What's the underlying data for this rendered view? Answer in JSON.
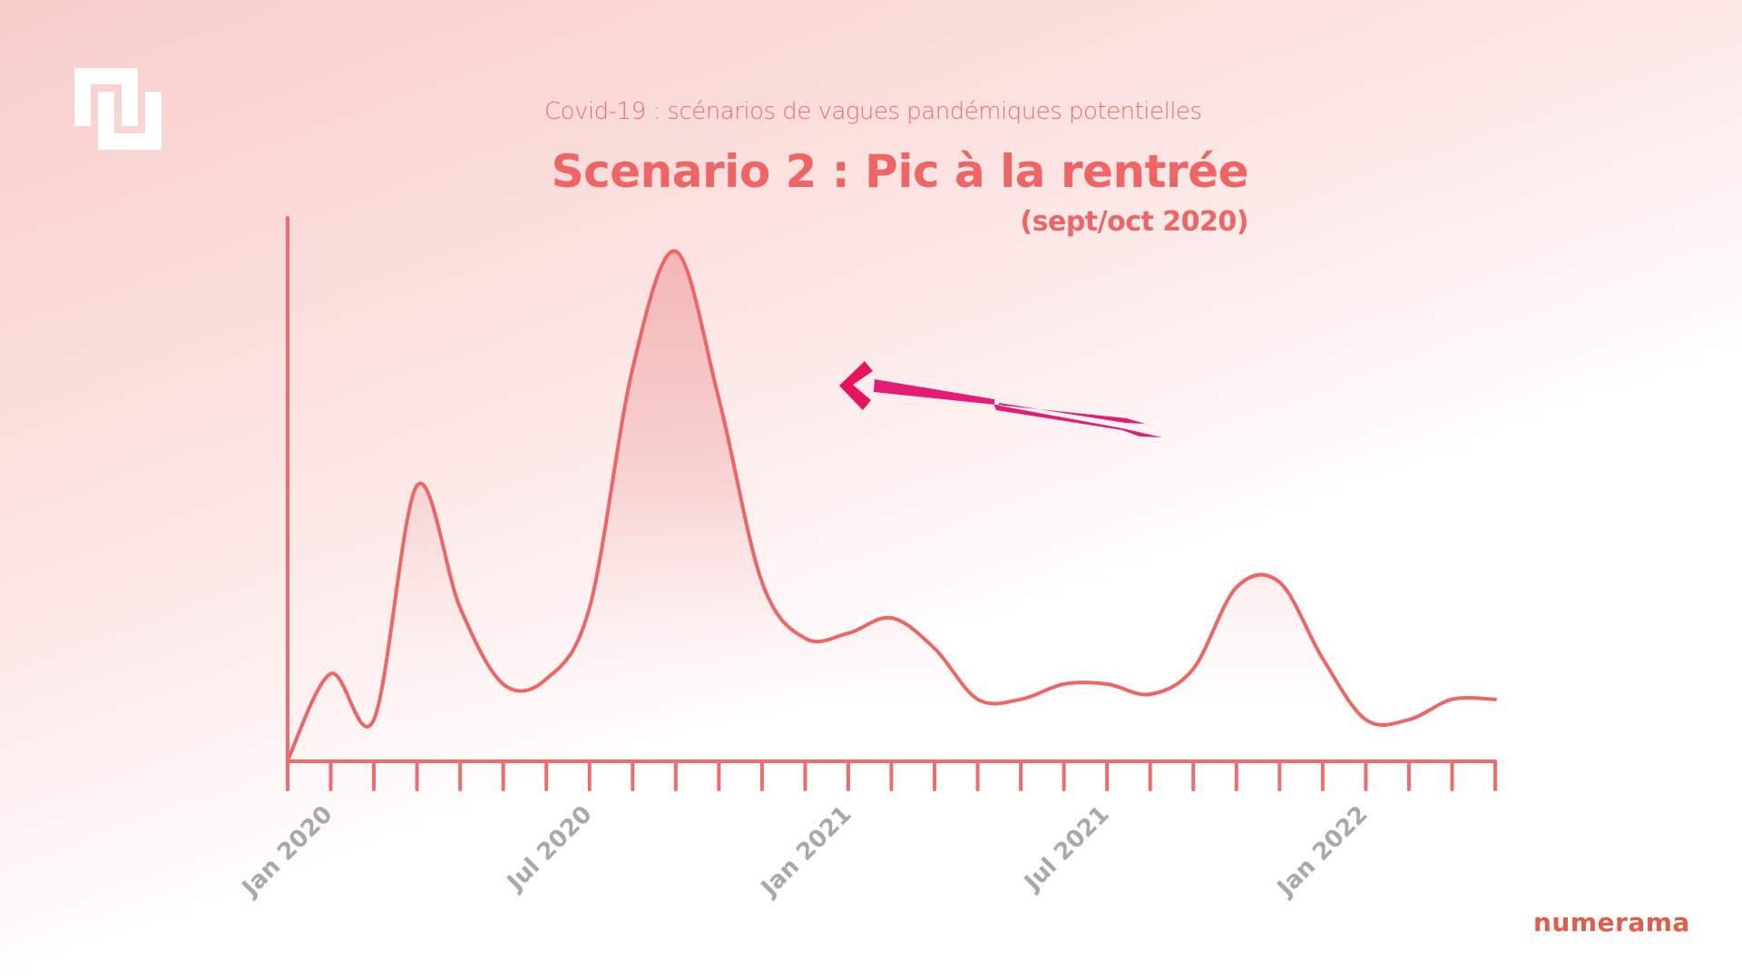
{
  "header": {
    "subtitle": "Covid-19 : scénarios de vagues pandémiques potentielles",
    "title": "Scenario 2 : Pic à la rentrée",
    "period": "(sept/oct 2020)"
  },
  "branding": {
    "logo_icon": "numerama-logo-icon",
    "wordmark": "numerama"
  },
  "colors": {
    "curve": "#ef6565",
    "axis": "#f06b6b",
    "arrow": "#e8136f",
    "label_gray": "#a9a9a9",
    "brand": "#e35c47"
  },
  "axis": {
    "x_labels": [
      {
        "label": "Jan 2020",
        "tick_index": 1
      },
      {
        "label": "Jul 2020",
        "tick_index": 7
      },
      {
        "label": "Jan 2021",
        "tick_index": 13
      },
      {
        "label": "Jul 2021",
        "tick_index": 19
      },
      {
        "label": "Jan 2022",
        "tick_index": 25
      }
    ],
    "tick_count": 29
  },
  "annotation": {
    "type": "arrow",
    "points_to": "peak sept/oct 2020"
  },
  "chart_data": {
    "type": "area",
    "title": "Scenario 2 : Pic à la rentrée",
    "subtitle": "Covid-19 : scénarios de vagues pandémiques potentielles",
    "annotation": "(sept/oct 2020)",
    "xlabel": "",
    "ylabel": "",
    "x_tick_labels": [
      "Jan 2020",
      "Jul 2020",
      "Jan 2021",
      "Jul 2021",
      "Jan 2022"
    ],
    "grid": false,
    "legend": null,
    "y_units": "relative (unlabeled, 0-100)",
    "x": [
      "Dec 2019",
      "Jan 2020",
      "Feb 2020",
      "Mar 2020",
      "Apr 2020",
      "May 2020",
      "Jun 2020",
      "Jul 2020",
      "Aug 2020",
      "Sep 2020",
      "Oct 2020",
      "Nov 2020",
      "Dec 2020",
      "Jan 2021",
      "Feb 2021",
      "Mar 2021",
      "Apr 2021",
      "May 2021",
      "Jun 2021",
      "Jul 2021",
      "Aug 2021",
      "Sep 2021",
      "Oct 2021",
      "Nov 2021",
      "Dec 2021",
      "Jan 2022",
      "Feb 2022",
      "Mar 2022",
      "Apr 2022"
    ],
    "series": [
      {
        "name": "Scenario 2",
        "values": [
          0,
          17,
          8,
          54,
          30,
          15,
          16,
          30,
          77,
          100,
          71,
          35,
          24,
          25,
          28,
          22,
          12,
          12,
          15,
          15,
          13,
          18,
          34,
          35,
          20,
          8,
          8,
          12,
          12
        ]
      }
    ],
    "ylim": [
      0,
      105
    ]
  }
}
